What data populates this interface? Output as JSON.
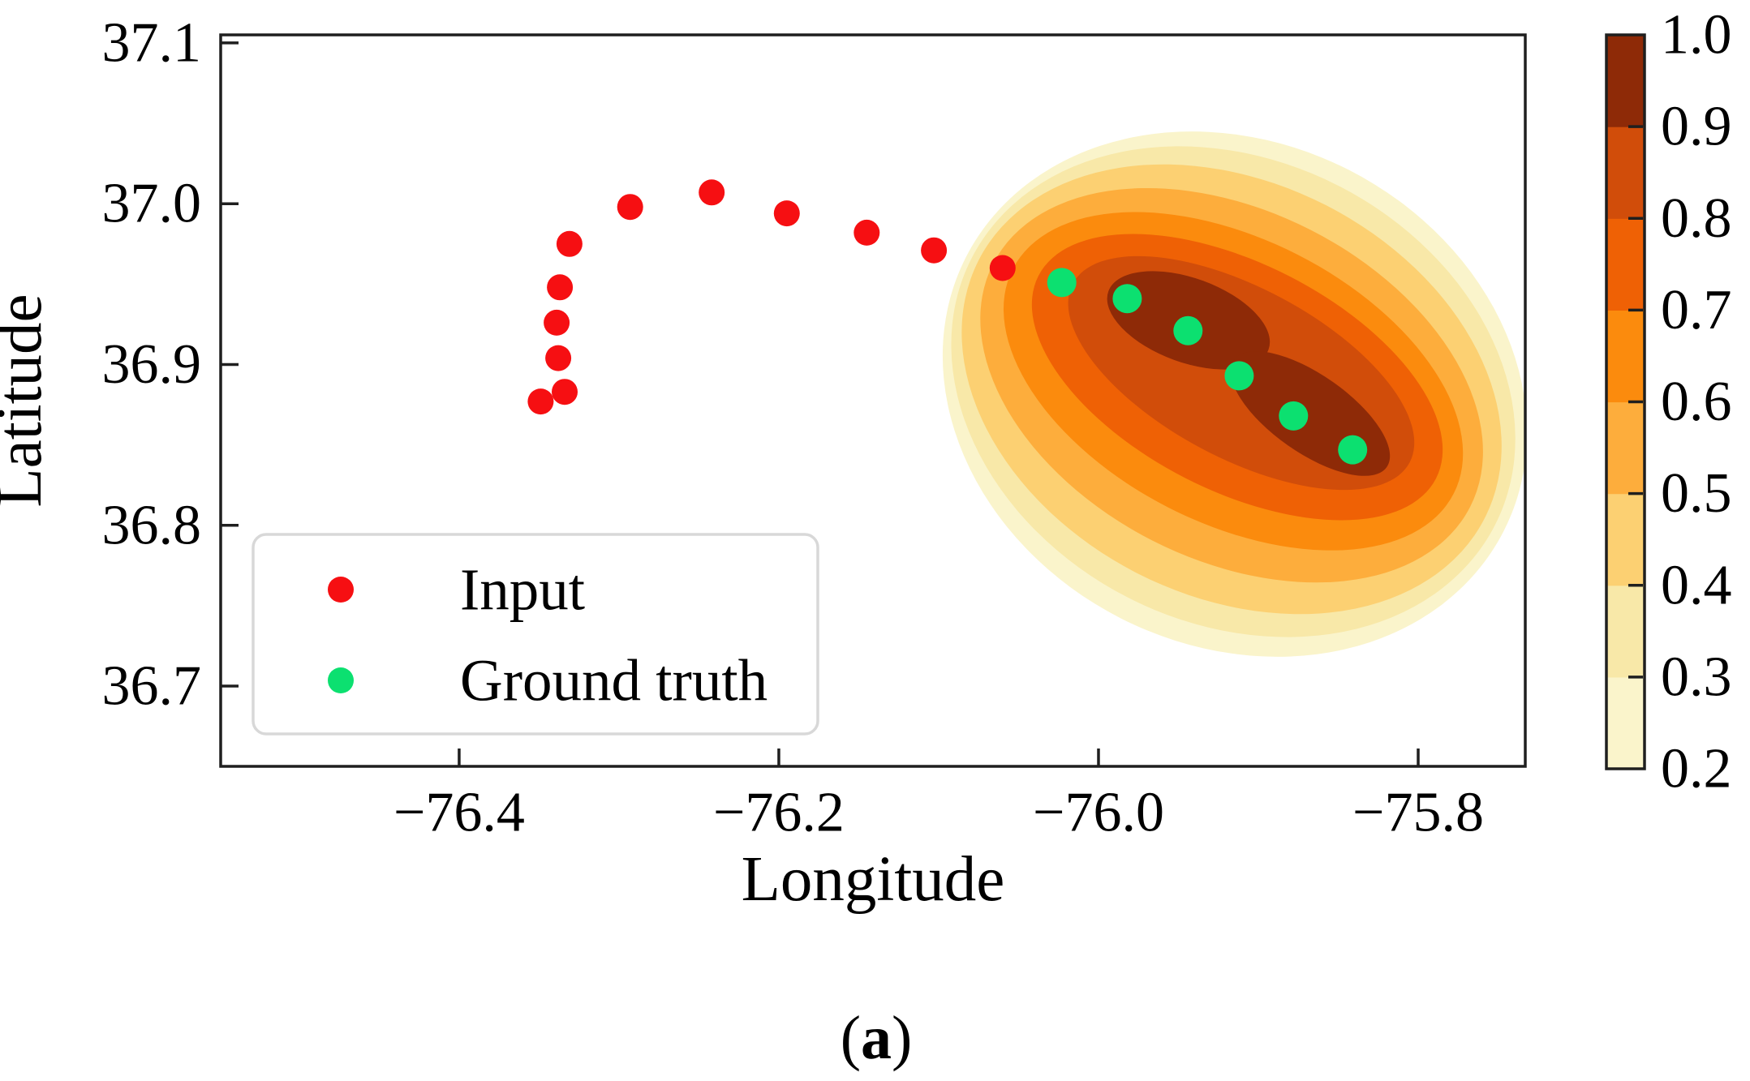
{
  "caption": {
    "prefix": "(",
    "letter": "a",
    "suffix": ")"
  },
  "style": {
    "spine_color": "#1f1f1f",
    "background": "#ffffff",
    "legend_border_color": "#d8d8d8",
    "input_color": "#f60f12",
    "ground_truth_color": "#0ce070"
  },
  "legend": {
    "items": [
      {
        "label": "Input",
        "color": "#f60f12"
      },
      {
        "label": "Ground truth",
        "color": "#0ce070"
      }
    ]
  },
  "colorbar": {
    "min": 0.2,
    "max": 1.0,
    "tick_labels": [
      {
        "v": 1.0,
        "label": "1.0"
      },
      {
        "v": 0.9,
        "label": "0.9"
      },
      {
        "v": 0.8,
        "label": "0.8"
      },
      {
        "v": 0.7,
        "label": "0.7"
      },
      {
        "v": 0.6,
        "label": "0.6"
      },
      {
        "v": 0.5,
        "label": "0.5"
      },
      {
        "v": 0.4,
        "label": "0.4"
      },
      {
        "v": 0.3,
        "label": "0.3"
      },
      {
        "v": 0.2,
        "label": "0.2"
      }
    ],
    "band_colors": [
      "#FAF4CB",
      "#F8E8A8",
      "#FCD072",
      "#FDAD3C",
      "#FB8B0D",
      "#EF6105",
      "#D14D0A",
      "#8E2A07"
    ]
  },
  "chart_data": {
    "type": "scatter",
    "title": "",
    "xlabel": "Longitude",
    "ylabel": "Latitude",
    "xlim": [
      -76.5492,
      -75.733
    ],
    "ylim": [
      36.6501,
      37.105
    ],
    "grid": false,
    "legend_position": "lower left",
    "x_ticks": [
      {
        "v": -76.4,
        "label": "−76.4"
      },
      {
        "v": -76.2,
        "label": "−76.2"
      },
      {
        "v": -76.0,
        "label": "−76.0"
      },
      {
        "v": -75.8,
        "label": "−75.8"
      }
    ],
    "y_ticks": [
      {
        "v": 37.1,
        "label": "37.1"
      },
      {
        "v": 37.0,
        "label": "37.0"
      },
      {
        "v": 36.9,
        "label": "36.9"
      },
      {
        "v": 36.8,
        "label": "36.8"
      },
      {
        "v": 36.7,
        "label": "36.7"
      }
    ],
    "series": [
      {
        "name": "Input",
        "color": "#f60f12",
        "marker_radius_px": 16,
        "points": [
          [
            -76.349,
            36.877
          ],
          [
            -76.334,
            36.883
          ],
          [
            -76.338,
            36.904
          ],
          [
            -76.339,
            36.926
          ],
          [
            -76.337,
            36.948
          ],
          [
            -76.331,
            36.975
          ],
          [
            -76.293,
            36.998
          ],
          [
            -76.242,
            37.007
          ],
          [
            -76.195,
            36.994
          ],
          [
            -76.145,
            36.982
          ],
          [
            -76.103,
            36.971
          ],
          [
            -76.06,
            36.96
          ]
        ]
      },
      {
        "name": "Ground truth",
        "color": "#0ce070",
        "marker_radius_px": 18,
        "points": [
          [
            -76.023,
            36.951
          ],
          [
            -75.982,
            36.941
          ],
          [
            -75.944,
            36.921
          ],
          [
            -75.912,
            36.893
          ],
          [
            -75.878,
            36.868
          ],
          [
            -75.841,
            36.847
          ]
        ]
      }
    ],
    "density_contour": {
      "description": "Predicted probability density (KDE-style filled contours), levels 0.2-1.0 step 0.1",
      "levels": [
        0.2,
        0.3,
        0.4,
        0.5,
        0.6,
        0.7,
        0.8,
        0.9
      ],
      "bands": [
        {
          "level": 0.2,
          "cx": -75.9147,
          "cy": 36.8816,
          "rx": 0.1888,
          "ry": 0.1564,
          "rot": 27
        },
        {
          "level": 0.3,
          "cx": -75.9157,
          "cy": 36.8831,
          "rx": 0.1838,
          "ry": 0.1438,
          "rot": 27
        },
        {
          "level": 0.4,
          "cx": -75.9167,
          "cy": 36.8846,
          "rx": 0.1777,
          "ry": 0.1286,
          "rot": 27
        },
        {
          "level": 0.5,
          "cx": -75.9167,
          "cy": 36.8871,
          "rx": 0.1675,
          "ry": 0.1084,
          "rot": 27
        },
        {
          "level": 0.6,
          "cx": -75.9157,
          "cy": 36.8896,
          "rx": 0.1548,
          "ry": 0.0883,
          "rot": 27
        },
        {
          "level": 0.7,
          "cx": -75.9132,
          "cy": 36.8922,
          "rx": 0.1396,
          "ry": 0.0706,
          "rot": 27
        },
        {
          "level": 0.8,
          "cx": -75.9107,
          "cy": 36.8947,
          "rx": 0.1193,
          "ry": 0.053,
          "rot": 28
        },
        {
          "level": 0.9,
          "lobes": [
            {
              "cx": -75.9437,
              "cy": 36.9275,
              "rx": 0.0533,
              "ry": 0.0262,
              "rot": 20
            },
            {
              "cx": -75.8675,
              "cy": 36.8695,
              "rx": 0.0584,
              "ry": 0.0242,
              "rot": 35
            }
          ]
        }
      ]
    }
  }
}
